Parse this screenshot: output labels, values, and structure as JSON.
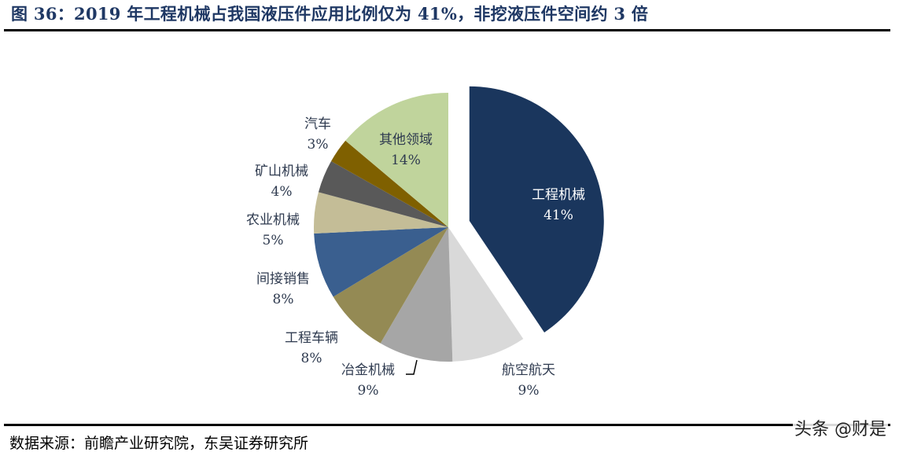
{
  "header": {
    "title": "图 36：2019 年工程机械占我国液压件应用比例仅为 41%，非挖液压件空间约 3 倍"
  },
  "footer": {
    "source": "数据来源：前瞻产业研究院，东吴证券研究所",
    "watermark": "头条 @财是"
  },
  "chart_data": {
    "type": "pie",
    "title": "2019 年工程机械占我国液压件应用比例仅为 41%，非挖液压件空间约 3 倍",
    "start_angle": "12 o'clock",
    "direction": "clockwise",
    "exploded": [
      "工程机械"
    ],
    "categories": [
      "工程机械",
      "航空航天",
      "冶金机械",
      "工程车辆",
      "间接销售",
      "农业机械",
      "矿山机械",
      "汽车",
      "其他领域"
    ],
    "values": [
      41,
      9,
      9,
      8,
      8,
      5,
      4,
      3,
      14
    ],
    "unit": "%",
    "labels": [
      "41%",
      "9%",
      "9%",
      "8%",
      "8%",
      "5%",
      "4%",
      "3%",
      "14%"
    ],
    "colors": [
      "#1a365d",
      "#d9d9d9",
      "#a6a6a6",
      "#948a54",
      "#3a5f8f",
      "#c4bd97",
      "#595959",
      "#7f6000",
      "#c0d49c"
    ],
    "legend": "none (data labels)"
  },
  "labels": {
    "s0": {
      "name": "工程机械",
      "pct": "41%"
    },
    "s1": {
      "name": "航空航天",
      "pct": "9%"
    },
    "s2": {
      "name": "冶金机械",
      "pct": "9%"
    },
    "s3": {
      "name": "工程车辆",
      "pct": "8%"
    },
    "s4": {
      "name": "间接销售",
      "pct": "8%"
    },
    "s5": {
      "name": "农业机械",
      "pct": "5%"
    },
    "s6": {
      "name": "矿山机械",
      "pct": "4%"
    },
    "s7": {
      "name": "汽车",
      "pct": "3%"
    },
    "s8": {
      "name": "其他领域",
      "pct": "14%"
    }
  }
}
